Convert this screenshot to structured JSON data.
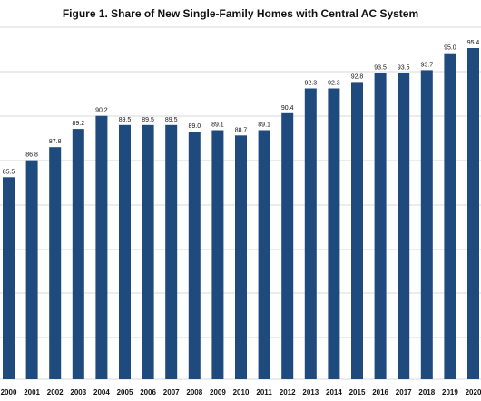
{
  "colors": {
    "bar": "#1f4a7d",
    "grid": "#d9d9d9",
    "text": "#111111"
  },
  "chart_data": {
    "type": "bar",
    "title": "Figure 1. Share of New Single-Family Homes with Central AC System",
    "xlabel": "",
    "ylabel": "",
    "categories": [
      "2000",
      "2001",
      "2002",
      "2003",
      "2004",
      "2005",
      "2006",
      "2007",
      "2008",
      "2009",
      "2010",
      "2011",
      "2012",
      "2013",
      "2014",
      "2015",
      "2016",
      "2017",
      "2018",
      "2019",
      "2020"
    ],
    "values": [
      85.5,
      86.8,
      87.8,
      89.2,
      90.2,
      89.5,
      89.5,
      89.5,
      89.0,
      89.1,
      88.7,
      89.1,
      90.4,
      92.3,
      92.3,
      92.8,
      93.5,
      93.5,
      93.7,
      95.0,
      95.4
    ],
    "value_labels": [
      "85.5",
      "86.8",
      "87.8",
      "89.2",
      "90.2",
      "89.5",
      "89.5",
      "89.5",
      "89.0",
      "89.1",
      "88.7",
      "89.1",
      "90.4",
      "92.3",
      "92.3",
      "92.8",
      "93.5",
      "93.5",
      "93.7",
      "95.0",
      "95.4"
    ],
    "ylim": [
      70,
      97
    ],
    "grid": true,
    "legend": "none"
  }
}
